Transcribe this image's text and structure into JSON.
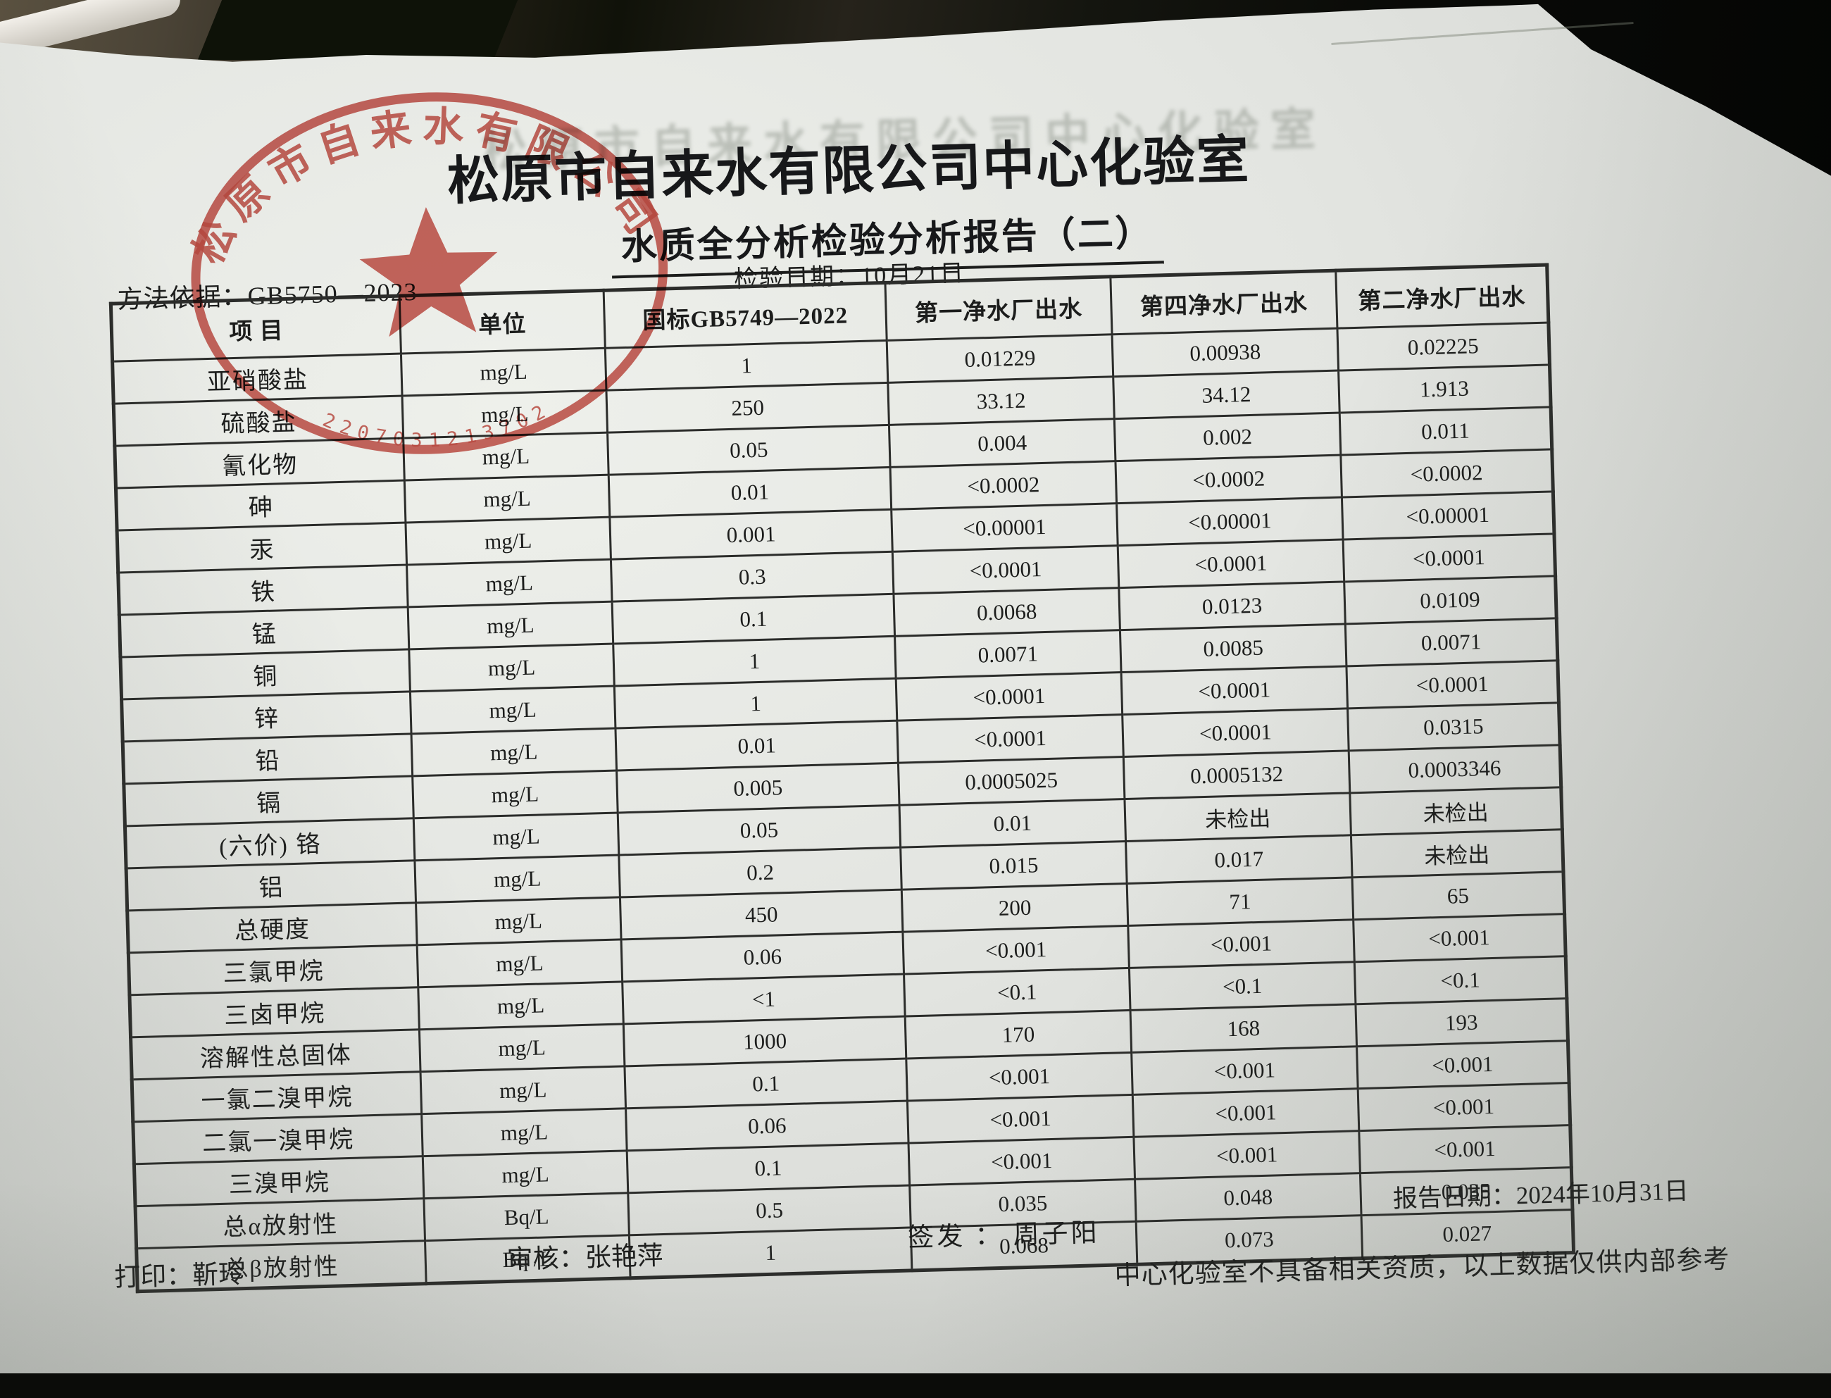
{
  "colors": {
    "stamp_red": "#bf3a31",
    "paper": "#e3e5e1",
    "ink": "#1c1d1c",
    "desk_dark": "#0b0c09"
  },
  "photo": {
    "ghost_title": "松原市自来水有限公司中心化验室"
  },
  "header": {
    "title": "松原市自来水有限公司中心化验室",
    "subtitle": "水质全分析检验分析报告（二）",
    "test_date_line": "检验日期：10月21日",
    "method_line": "方法依据：GB5750—2023"
  },
  "stamp": {
    "ring_text": "松原市自来水有限公司",
    "serial": "2207031213702",
    "star_icon": "red-star",
    "color": "#bf3a31"
  },
  "table": {
    "columns": [
      "项  目",
      "单位",
      "国标GB5749—2022",
      "第一净水厂出水",
      "第四净水厂出水",
      "第二净水厂出水"
    ],
    "rows": [
      [
        "亚硝酸盐",
        "mg/L",
        "1",
        "0.01229",
        "0.00938",
        "0.02225"
      ],
      [
        "硫酸盐",
        "mg/L",
        "250",
        "33.12",
        "34.12",
        "1.913"
      ],
      [
        "氰化物",
        "mg/L",
        "0.05",
        "0.004",
        "0.002",
        "0.011"
      ],
      [
        "砷",
        "mg/L",
        "0.01",
        "<0.0002",
        "<0.0002",
        "<0.0002"
      ],
      [
        "汞",
        "mg/L",
        "0.001",
        "<0.00001",
        "<0.00001",
        "<0.00001"
      ],
      [
        "铁",
        "mg/L",
        "0.3",
        "<0.0001",
        "<0.0001",
        "<0.0001"
      ],
      [
        "锰",
        "mg/L",
        "0.1",
        "0.0068",
        "0.0123",
        "0.0109"
      ],
      [
        "铜",
        "mg/L",
        "1",
        "0.0071",
        "0.0085",
        "0.0071"
      ],
      [
        "锌",
        "mg/L",
        "1",
        "<0.0001",
        "<0.0001",
        "<0.0001"
      ],
      [
        "铅",
        "mg/L",
        "0.01",
        "<0.0001",
        "<0.0001",
        "0.0315"
      ],
      [
        "镉",
        "mg/L",
        "0.005",
        "0.0005025",
        "0.0005132",
        "0.0003346"
      ],
      [
        "(六价) 铬",
        "mg/L",
        "0.05",
        "0.01",
        "未检出",
        "未检出"
      ],
      [
        "铝",
        "mg/L",
        "0.2",
        "0.015",
        "0.017",
        "未检出"
      ],
      [
        "总硬度",
        "mg/L",
        "450",
        "200",
        "71",
        "65"
      ],
      [
        "三氯甲烷",
        "mg/L",
        "0.06",
        "<0.001",
        "<0.001",
        "<0.001"
      ],
      [
        "三卤甲烷",
        "mg/L",
        "<1",
        "<0.1",
        "<0.1",
        "<0.1"
      ],
      [
        "溶解性总固体",
        "mg/L",
        "1000",
        "170",
        "168",
        "193"
      ],
      [
        "一氯二溴甲烷",
        "mg/L",
        "0.1",
        "<0.001",
        "<0.001",
        "<0.001"
      ],
      [
        "二氯一溴甲烷",
        "mg/L",
        "0.06",
        "<0.001",
        "<0.001",
        "<0.001"
      ],
      [
        "三溴甲烷",
        "mg/L",
        "0.1",
        "<0.001",
        "<0.001",
        "<0.001"
      ],
      [
        "总α放射性",
        "Bq/L",
        "0.5",
        "0.035",
        "0.048",
        "0.035"
      ],
      [
        "总β放射性",
        "Bq /L",
        "1",
        "0.068",
        "0.073",
        "0.027"
      ]
    ]
  },
  "footer": {
    "report_date": "报告日期：2024年10月31日",
    "issued_by": "签发 ： 周子阳",
    "disclaimer": "中心化验室不具备相关资质，以上数据仅供内部参考",
    "reviewed_by": "审核：张艳萍",
    "printed_by": "打印：靳玲"
  }
}
